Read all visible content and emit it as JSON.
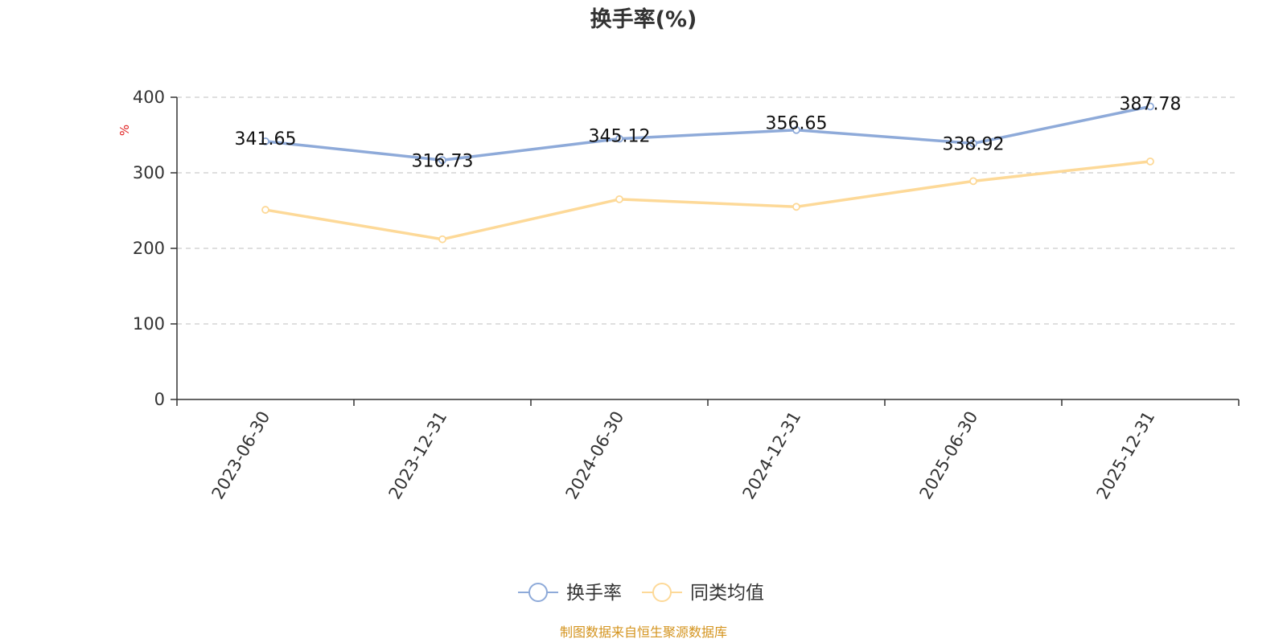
{
  "chart_data": {
    "type": "line",
    "title": "换手率(%)",
    "ylabel": "%",
    "ylim": [
      0,
      400
    ],
    "yticks": [
      0,
      100,
      200,
      300,
      400
    ],
    "grid": true,
    "categories": [
      "2023-06-30",
      "2023-12-31",
      "2024-06-30",
      "2024-12-31",
      "2025-06-30",
      "2025-12-31"
    ],
    "series": [
      {
        "name": "换手率",
        "color": "#8eaad9",
        "values": [
          341.65,
          316.73,
          345.12,
          356.65,
          338.92,
          387.78
        ],
        "labels": [
          "341.65",
          "316.73",
          "345.12",
          "356.65",
          "338.92",
          "387.78"
        ]
      },
      {
        "name": "同类均值",
        "color": "#fdd998",
        "values": [
          251,
          212,
          265,
          255,
          289,
          315
        ]
      }
    ],
    "legend_position": "bottom-center"
  },
  "source_text": "制图数据来自恒生聚源数据库",
  "colors": {
    "axis": "#333333",
    "grid": "#cccccc",
    "unit": "#e02020",
    "source": "#d4941f"
  }
}
